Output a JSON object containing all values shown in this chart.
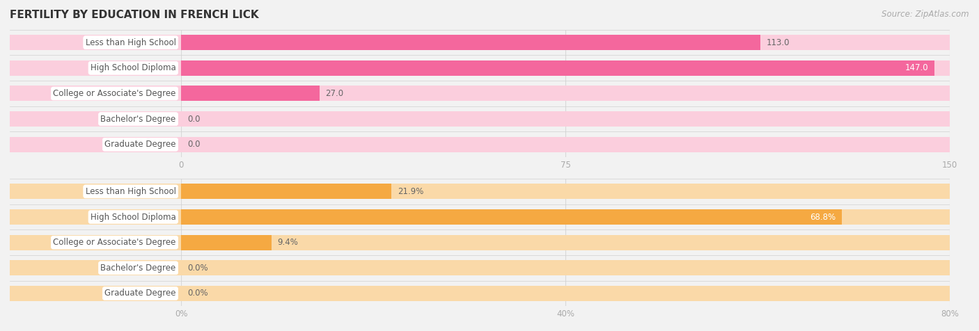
{
  "title": "FERTILITY BY EDUCATION IN FRENCH LICK",
  "source": "Source: ZipAtlas.com",
  "categories": [
    "Less than High School",
    "High School Diploma",
    "College or Associate's Degree",
    "Bachelor's Degree",
    "Graduate Degree"
  ],
  "pink_values": [
    113.0,
    147.0,
    27.0,
    0.0,
    0.0
  ],
  "pink_max": 150.0,
  "pink_ticks": [
    0.0,
    75.0,
    150.0
  ],
  "orange_values": [
    21.9,
    68.8,
    9.4,
    0.0,
    0.0
  ],
  "orange_max": 80.0,
  "orange_ticks": [
    0.0,
    40.0,
    80.0
  ],
  "pink_bar_color": "#F4679D",
  "pink_bar_light": "#FBCEDD",
  "orange_bar_color": "#F5A942",
  "orange_bar_light": "#FAD9A8",
  "bg_color": "#F2F2F2",
  "label_color": "#555555",
  "value_color_inside": "#FFFFFF",
  "value_color_outside": "#666666",
  "tick_color": "#AAAAAA",
  "grid_color": "#D8D8D8",
  "sep_color": "#D0D0D0",
  "title_color": "#333333",
  "source_color": "#AAAAAA",
  "bar_height": 0.6,
  "label_fontsize": 8.5,
  "value_fontsize": 8.5,
  "tick_fontsize": 8.5,
  "title_fontsize": 11,
  "source_fontsize": 8.5,
  "pink_inside_threshold": 0.8,
  "orange_inside_threshold": 0.7
}
